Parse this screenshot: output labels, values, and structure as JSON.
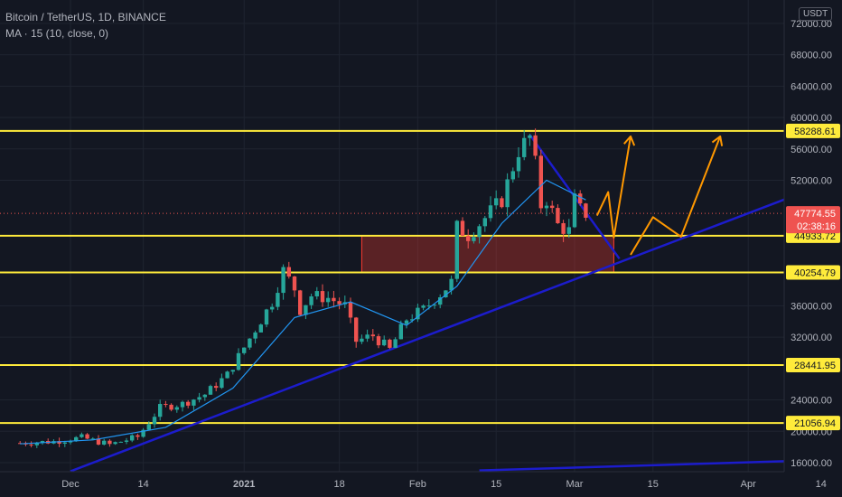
{
  "header": {
    "title": "Bitcoin / TetherUS, 1D, BINANCE",
    "indicator": "MA · 15 (10, close, 0)",
    "quote_currency": "USDT"
  },
  "price_axis": {
    "ticks": [
      "72000.00",
      "68000.00",
      "64000.00",
      "60000.00",
      "56000.00",
      "52000.00",
      "36000.00",
      "32000.00",
      "24000.00",
      "20000.00",
      "16000.00"
    ],
    "current_price": "47774.55",
    "countdown": "02:38:16"
  },
  "chart_data": {
    "type": "candlestick",
    "title": "Bitcoin / TetherUS, 1D, BINANCE",
    "xlabel": "",
    "ylabel": "",
    "x_ticks": [
      "Dec",
      "14",
      "2021",
      "18",
      "Feb",
      "15",
      "Mar",
      "15",
      "Apr",
      "14"
    ],
    "ylim": [
      14500,
      74500
    ],
    "grid": true,
    "current_price": 47774.55,
    "horizontal_levels": [
      {
        "value": 58288.61,
        "label": "58288.61",
        "color": "#ffeb3b"
      },
      {
        "value": 44933.72,
        "label": "44933.72",
        "color": "#ffeb3b"
      },
      {
        "value": 40254.79,
        "label": "40254.79",
        "color": "#ffeb3b"
      },
      {
        "value": 28441.95,
        "label": "28441.95",
        "color": "#ffeb3b"
      },
      {
        "value": 21056.94,
        "label": "21056.94",
        "color": "#ffeb3b"
      }
    ],
    "zone": {
      "from_date": "2021-01-22",
      "to_date": "2021-03-08",
      "low": 40254.79,
      "high": 44933.72,
      "color": "#ff3b30"
    },
    "close_path": [
      [
        "2020-11-22",
        18500
      ],
      [
        "2020-11-28",
        18700
      ],
      [
        "2020-12-03",
        19200
      ],
      [
        "2020-12-08",
        18300
      ],
      [
        "2020-12-13",
        19300
      ],
      [
        "2020-12-17",
        23000
      ],
      [
        "2020-12-21",
        23500
      ],
      [
        "2020-12-25",
        24700
      ],
      [
        "2020-12-29",
        27200
      ],
      [
        "2021-01-03",
        33000
      ],
      [
        "2021-01-06",
        36500
      ],
      [
        "2021-01-08",
        40500
      ],
      [
        "2021-01-10",
        38200
      ],
      [
        "2021-01-11",
        35500
      ],
      [
        "2021-01-13",
        37300
      ],
      [
        "2021-01-16",
        37000
      ],
      [
        "2021-01-19",
        36000
      ],
      [
        "2021-01-21",
        31500
      ],
      [
        "2021-01-24",
        32200
      ],
      [
        "2021-01-27",
        30400
      ],
      [
        "2021-01-30",
        34300
      ],
      [
        "2021-02-02",
        35500
      ],
      [
        "2021-02-05",
        37500
      ],
      [
        "2021-02-07",
        39000
      ],
      [
        "2021-02-08",
        46000
      ],
      [
        "2021-02-10",
        45000
      ],
      [
        "2021-02-13",
        47200
      ],
      [
        "2021-02-16",
        49500
      ],
      [
        "2021-02-19",
        55800
      ],
      [
        "2021-02-21",
        57500
      ],
      [
        "2021-02-22",
        54000
      ],
      [
        "2021-02-23",
        48800
      ],
      [
        "2021-02-24",
        49600
      ],
      [
        "2021-02-26",
        46300
      ],
      [
        "2021-02-28",
        45500
      ],
      [
        "2021-03-01",
        49500
      ],
      [
        "2021-03-02",
        48200
      ],
      [
        "2021-03-03",
        47774.55
      ]
    ],
    "moving_average": {
      "name": "MA 15",
      "color": "#2196f3",
      "values": [
        [
          "2020-11-22",
          18400
        ],
        [
          "2020-12-05",
          18900
        ],
        [
          "2020-12-18",
          20500
        ],
        [
          "2020-12-30",
          25500
        ],
        [
          "2021-01-10",
          34500
        ],
        [
          "2021-01-20",
          36500
        ],
        [
          "2021-01-30",
          33500
        ],
        [
          "2021-02-08",
          38500
        ],
        [
          "2021-02-16",
          46500
        ],
        [
          "2021-02-24",
          52000
        ],
        [
          "2021-03-03",
          49500
        ]
      ]
    },
    "trendlines": [
      {
        "from": [
          "2020-12-01",
          14900
        ],
        "to": [
          "2021-04-22",
          53500
        ],
        "color": "#1c1ccc"
      },
      {
        "from": [
          "2021-02-21",
          57800
        ],
        "to": [
          "2021-03-09",
          42000
        ],
        "color": "#1c1ccc"
      },
      {
        "from": [
          "2021-02-12",
          15000
        ],
        "to": [
          "2021-04-22",
          16500
        ],
        "color": "#1c1ccc"
      }
    ],
    "projections": [
      {
        "color": "#ff9800",
        "points": [
          [
            "2021-03-05",
            47500
          ],
          [
            "2021-03-07",
            50500
          ],
          [
            "2021-03-08",
            44700
          ],
          [
            "2021-03-11",
            57600
          ]
        ]
      },
      {
        "color": "#ff9800",
        "points": [
          [
            "2021-03-11",
            42500
          ],
          [
            "2021-03-15",
            47300
          ],
          [
            "2021-03-20",
            44800
          ],
          [
            "2021-03-27",
            57600
          ]
        ]
      }
    ]
  }
}
